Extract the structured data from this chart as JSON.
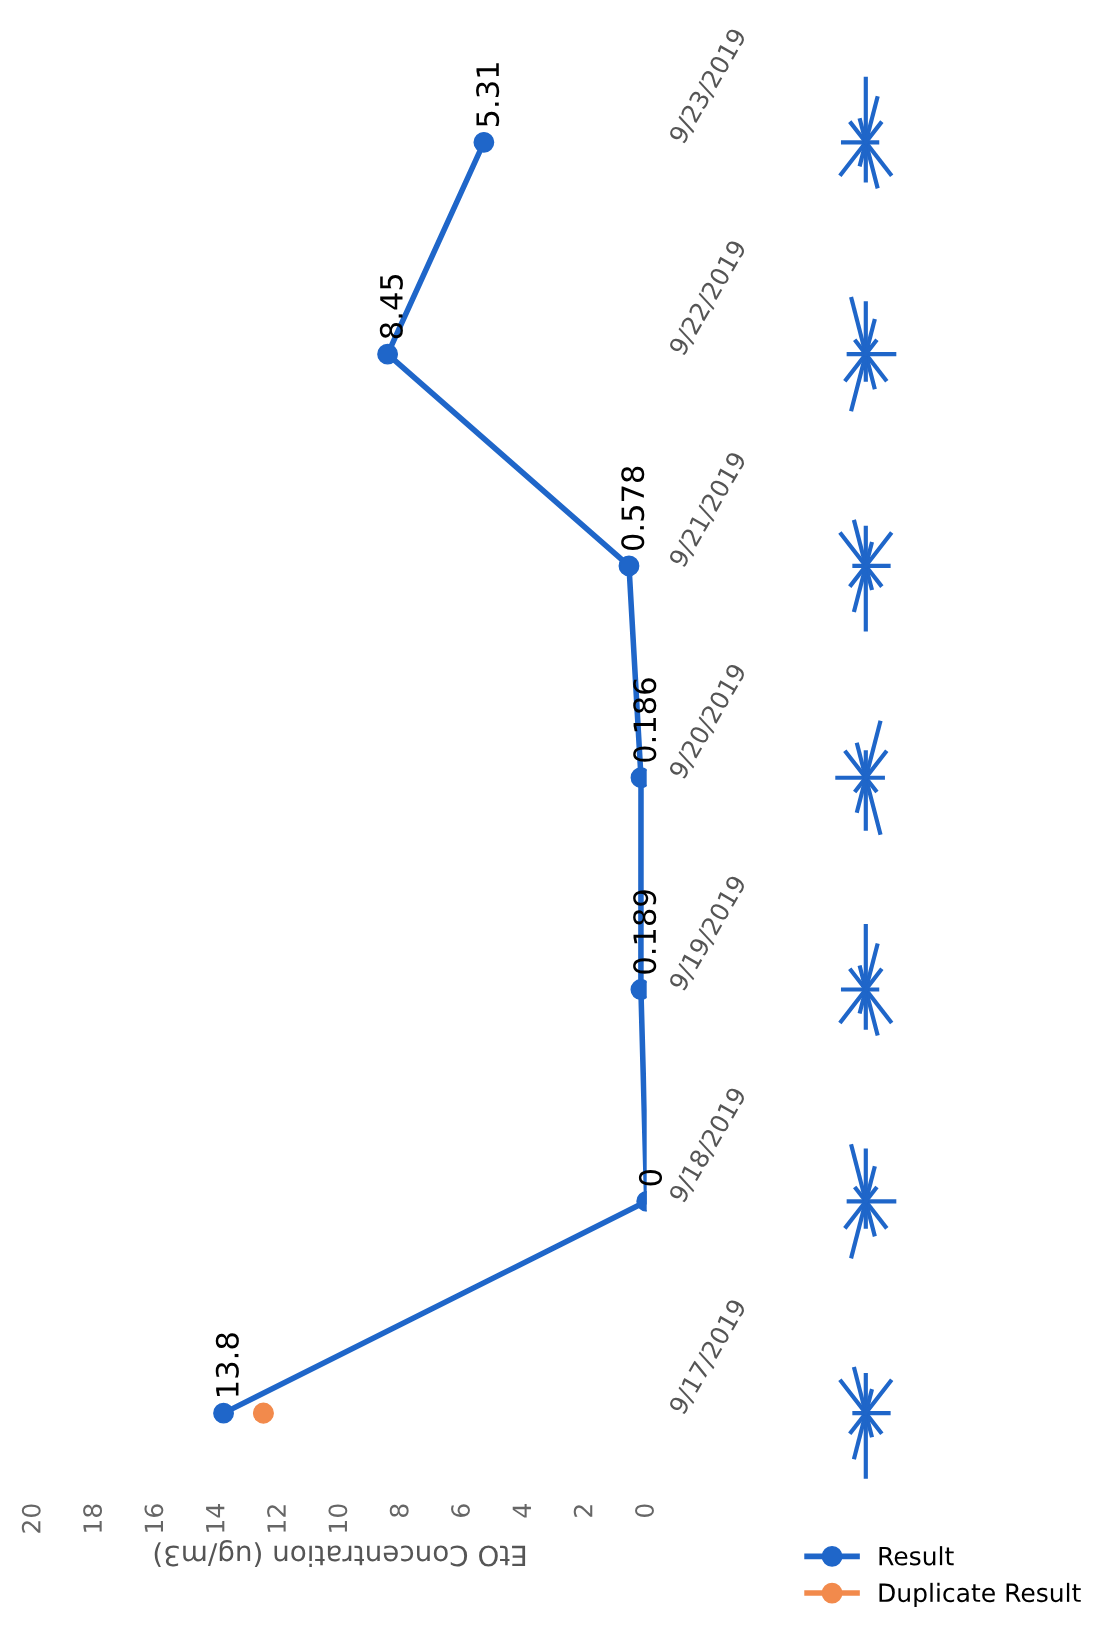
{
  "chart_data": {
    "type": "line",
    "orientation": "horizontal",
    "xlabel": "EtO Concentration (ug/m3)",
    "categories": [
      "9/23/2019",
      "9/22/2019",
      "9/21/2019",
      "9/20/2019",
      "9/19/2019",
      "9/18/2019",
      "9/17/2019"
    ],
    "xlim": [
      20,
      0
    ],
    "xticks": [
      0,
      2,
      4,
      6,
      8,
      10,
      12,
      14,
      16,
      18,
      20
    ],
    "series": [
      {
        "name": "Result",
        "color": "#1f66c9",
        "values": [
          5.31,
          8.45,
          0.578,
          0.186,
          0.189,
          0,
          13.8
        ],
        "value_labels": [
          "5.31",
          "8.45",
          "0.578",
          "0.186",
          "0.189",
          "0",
          "13.8"
        ]
      },
      {
        "name": "Duplicate Result",
        "type": "scatter",
        "color": "#f28a4c",
        "values": [
          null,
          null,
          null,
          null,
          null,
          null,
          12.5
        ]
      }
    ],
    "marker": "circle",
    "line_style": "solid",
    "grid": false,
    "legend": "bottom right"
  }
}
